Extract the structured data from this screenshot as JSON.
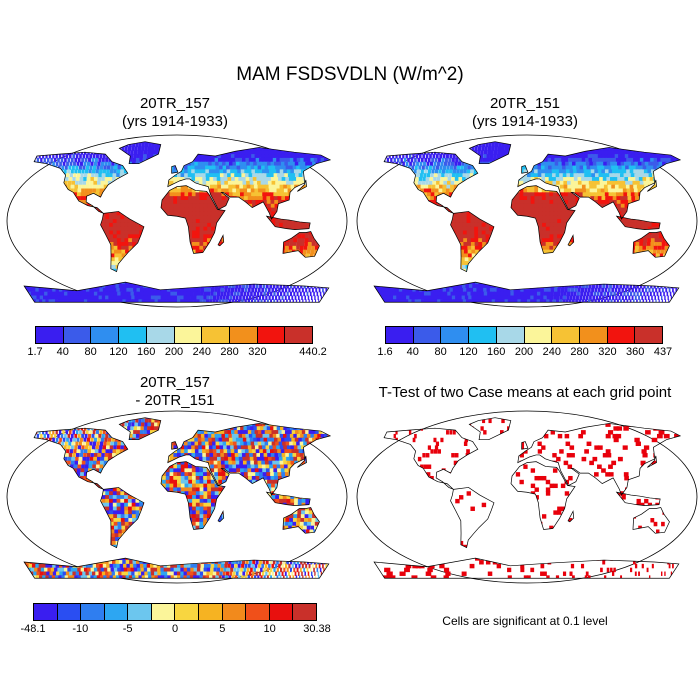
{
  "main_title": "MAM FSDSVDLN (W/m^2)",
  "panels": [
    {
      "title_line1": "20TR_157",
      "title_line2": "(yrs 1914-1933)"
    },
    {
      "title_line1": "20TR_151",
      "title_line2": "(yrs 1914-1933)"
    },
    {
      "title_line1": "20TR_157",
      "title_line2": "- 20TR_151"
    },
    {
      "title_line1": "T-Test of two Case means at each grid point",
      "title_line2": ""
    }
  ],
  "colorbars": [
    {
      "colors": [
        "#3a1ef0",
        "#3b5bea",
        "#2f8ef0",
        "#20bff2",
        "#a8d8e8",
        "#fbf59a",
        "#f6c234",
        "#f2901c",
        "#f2140e",
        "#c9302a"
      ],
      "labels": [
        "1.7",
        "40",
        "80",
        "120",
        "160",
        "200",
        "240",
        "280",
        "320",
        "",
        "440.2"
      ]
    },
    {
      "colors": [
        "#3a1ef0",
        "#3b5bea",
        "#2f8ef0",
        "#20bff2",
        "#a8d8e8",
        "#fbf59a",
        "#f6c234",
        "#f2901c",
        "#f2140e",
        "#c9302a"
      ],
      "labels": [
        "1.6",
        "40",
        "80",
        "120",
        "160",
        "200",
        "240",
        "280",
        "320",
        "360",
        "437"
      ]
    },
    {
      "colors": [
        "#3a1ef0",
        "#2a4ef2",
        "#2f7ef0",
        "#2da6f2",
        "#6cc6ee",
        "#fbf59a",
        "#f8d640",
        "#f6b322",
        "#f28a1c",
        "#f0501a",
        "#e8100e",
        "#c9302a"
      ],
      "labels": [
        "-48.1",
        "",
        "-10",
        "",
        "-5",
        "",
        "0",
        "",
        "5",
        "",
        "10",
        "",
        "30.38"
      ]
    }
  ],
  "significance_note": "Cells are significant at 0.1 level",
  "colors": {
    "significant": "#e8000b",
    "coast": "#000000"
  }
}
